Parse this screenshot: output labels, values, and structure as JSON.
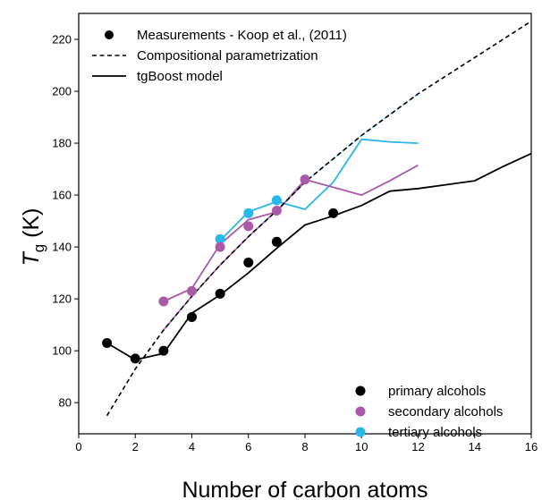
{
  "chart_data": {
    "type": "line",
    "xlabel": "Number of carbon atoms",
    "ylabel_main": "T",
    "ylabel_sub": "g",
    "ylabel_unit": " (K)",
    "xlim": [
      0,
      16
    ],
    "ylim": [
      68,
      230
    ],
    "x_ticks": [
      0,
      2,
      4,
      6,
      8,
      10,
      12,
      14,
      16
    ],
    "y_ticks": [
      80,
      100,
      120,
      140,
      160,
      180,
      200,
      220
    ],
    "grid": false,
    "legend_top": {
      "placement": "top-left",
      "entries": [
        {
          "label": "Measurements - Koop et al., (2011)",
          "style": "marker"
        },
        {
          "label": "Compositional parametrization",
          "style": "dashed"
        },
        {
          "label": "tgBoost model",
          "style": "solid"
        }
      ]
    },
    "legend_bottom": {
      "placement": "bottom-right",
      "entries": [
        {
          "label": "primary alcohols",
          "color": "#000000"
        },
        {
          "label": "secondary alcohols",
          "color": "#ab5aaa"
        },
        {
          "label": "tertiary alcohols",
          "color": "#29b6e8"
        }
      ]
    },
    "series": [
      {
        "name": "primary alcohols",
        "group": "primary",
        "color": "#000000",
        "measurements": {
          "x": [
            1,
            2,
            3,
            4,
            5,
            6,
            7,
            9
          ],
          "y": [
            103,
            97,
            100,
            113,
            122,
            134,
            142,
            153
          ]
        },
        "tgboost": {
          "x": [
            1,
            2,
            3,
            4,
            5,
            6,
            7,
            8,
            9,
            10,
            11,
            12,
            13,
            14,
            15,
            16
          ],
          "y": [
            103,
            96.5,
            99,
            114.5,
            121.5,
            130,
            139.5,
            148.5,
            152,
            156,
            161.5,
            162.5,
            164,
            165.5,
            171,
            176
          ]
        },
        "parametrization": {
          "x": [
            1,
            2,
            3,
            4,
            5,
            6,
            7,
            8,
            9,
            10,
            11,
            12,
            13,
            14,
            15,
            16
          ],
          "y": [
            75,
            93,
            108,
            121,
            133,
            144,
            154,
            165,
            174,
            183,
            191,
            199,
            206,
            213,
            220,
            227
          ]
        }
      },
      {
        "name": "secondary alcohols",
        "group": "secondary",
        "color": "#ab5aaa",
        "measurements": {
          "x": [
            3,
            4,
            5,
            6,
            7,
            8
          ],
          "y": [
            119,
            123,
            140,
            148,
            154,
            166
          ]
        },
        "tgboost": {
          "x": [
            3,
            4,
            5,
            6,
            7,
            8,
            9,
            10,
            11,
            12
          ],
          "y": [
            119,
            124,
            141,
            150.5,
            153.5,
            166,
            163,
            160,
            165.5,
            171.5
          ]
        },
        "parametrization": {
          "x": [
            3,
            4,
            5,
            6,
            7,
            8
          ],
          "y": [
            108,
            121,
            133,
            144,
            154,
            165
          ]
        }
      },
      {
        "name": "tertiary alcohols",
        "group": "tertiary",
        "color": "#29b6e8",
        "measurements": {
          "x": [
            5,
            6,
            7
          ],
          "y": [
            143,
            153,
            158
          ]
        },
        "tgboost": {
          "x": [
            5,
            6,
            7,
            8,
            9,
            10,
            11,
            12
          ],
          "y": [
            142.5,
            153.5,
            157.5,
            154.5,
            165,
            181.5,
            180.5,
            180
          ]
        },
        "parametrization": {
          "x": [
            5,
            6,
            7,
            8,
            9,
            10,
            11,
            12
          ],
          "y": [
            133,
            144,
            154,
            165,
            174,
            183,
            191,
            199
          ]
        }
      }
    ]
  }
}
